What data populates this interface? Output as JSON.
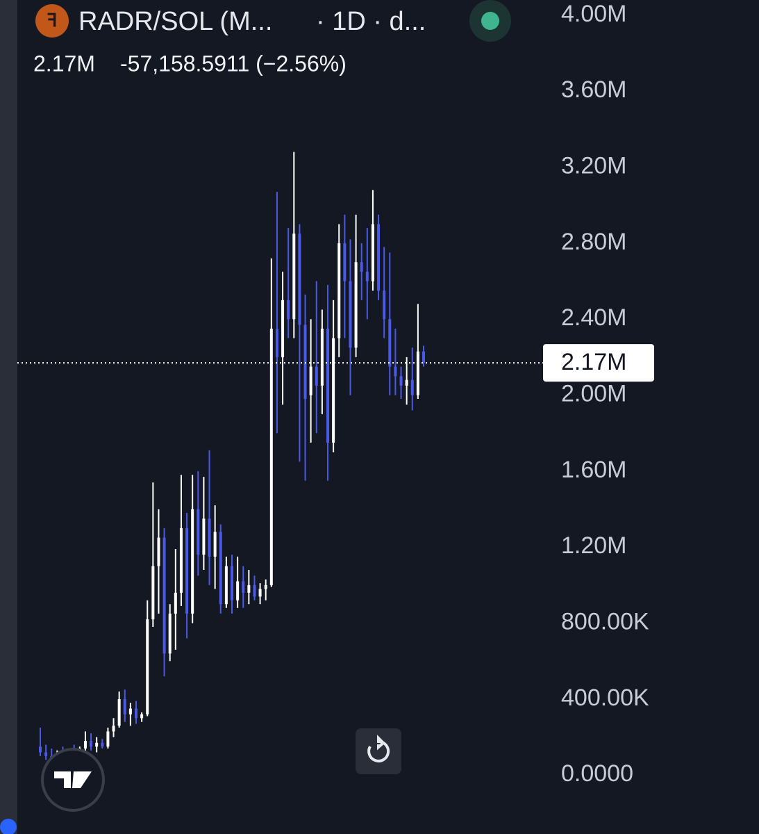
{
  "header": {
    "symbol": "RADR/SOL (M...",
    "interval": "· 1D · d...",
    "change": "-57,158.5911 (−2.56%)"
  },
  "chart_data": {
    "type": "candlestick",
    "open": [
      150000,
      120000,
      100000,
      90000,
      110000,
      100000,
      130000,
      110000,
      140000,
      180000,
      150000,
      170000,
      150000,
      230000,
      260000,
      400000,
      320000,
      350000,
      300000,
      320000,
      820000,
      1100000,
      1250000,
      640000,
      850000,
      960000,
      1300000,
      850000,
      1400000,
      1160000,
      1350000,
      1150000,
      1280000,
      900000,
      1100000,
      920000,
      1020000,
      960000,
      1000000,
      940000,
      980000,
      1000000,
      2350000,
      2200000,
      2500000,
      2400000,
      2850000,
      2370000,
      2000000,
      2150000,
      2050000,
      2350000,
      1750000,
      2300000,
      2800000,
      2600000,
      2250000,
      2700000,
      2650000,
      2600000,
      2900000,
      2550000,
      2400000,
      2150000,
      2100000,
      2050000,
      2080000,
      2000000,
      2230000
    ],
    "high": [
      250000,
      160000,
      140000,
      130000,
      150000,
      140000,
      160000,
      150000,
      230000,
      220000,
      200000,
      190000,
      250000,
      300000,
      440000,
      450000,
      380000,
      390000,
      330000,
      920000,
      1540000,
      1400000,
      1300000,
      900000,
      1190000,
      1580000,
      1380000,
      1580000,
      1600000,
      1570000,
      1710000,
      1420000,
      1320000,
      1150000,
      1160000,
      1150000,
      1100000,
      1080000,
      1050000,
      1010000,
      1030000,
      2720000,
      3070000,
      2650000,
      2880000,
      3280000,
      2900000,
      2530000,
      2400000,
      2600000,
      2450000,
      2580000,
      2500000,
      2900000,
      2950000,
      2820000,
      2950000,
      2800000,
      2880000,
      3080000,
      2950000,
      2780000,
      2750000,
      2350000,
      2150000,
      2200000,
      2250000,
      2480000,
      2260000
    ],
    "low": [
      100000,
      80000,
      70000,
      70000,
      90000,
      80000,
      100000,
      90000,
      120000,
      130000,
      120000,
      140000,
      140000,
      200000,
      250000,
      280000,
      260000,
      270000,
      280000,
      310000,
      780000,
      850000,
      520000,
      600000,
      660000,
      890000,
      720000,
      800000,
      1050000,
      1080000,
      1000000,
      980000,
      850000,
      880000,
      850000,
      880000,
      880000,
      900000,
      920000,
      900000,
      920000,
      990000,
      1800000,
      1950000,
      2300000,
      2300000,
      1650000,
      1550000,
      1750000,
      1800000,
      1900000,
      1550000,
      1700000,
      2200000,
      2300000,
      2000000,
      2200000,
      2500000,
      2400000,
      2550000,
      2500000,
      2300000,
      2000000,
      2000000,
      1980000,
      1950000,
      1920000,
      1980000,
      2150000
    ],
    "close": [
      120000,
      100000,
      90000,
      110000,
      100000,
      130000,
      110000,
      140000,
      180000,
      150000,
      170000,
      150000,
      230000,
      260000,
      400000,
      320000,
      350000,
      300000,
      320000,
      820000,
      1100000,
      1250000,
      640000,
      850000,
      960000,
      1300000,
      850000,
      1400000,
      1160000,
      1350000,
      1150000,
      1280000,
      900000,
      1100000,
      920000,
      1020000,
      960000,
      1000000,
      940000,
      980000,
      1000000,
      2350000,
      2200000,
      2500000,
      2400000,
      2850000,
      2370000,
      1980000,
      2150000,
      2050000,
      2350000,
      1750000,
      2300000,
      2800000,
      2600000,
      2250000,
      2700000,
      2650000,
      2600000,
      2900000,
      2550000,
      2400000,
      2150000,
      2100000,
      2050000,
      2080000,
      2000000,
      2230000,
      2170000
    ],
    "up_color": "#ffffff",
    "down_color": "#4a5ae6",
    "ylim": [
      -310000,
      4080000
    ],
    "yticks": [
      {
        "value": 0,
        "label": "0.0000"
      },
      {
        "value": 400000,
        "label": "400.00K"
      },
      {
        "value": 800000,
        "label": "800.00K"
      },
      {
        "value": 1200000,
        "label": "1.20M"
      },
      {
        "value": 1600000,
        "label": "1.60M"
      },
      {
        "value": 2000000,
        "label": "2.00M"
      },
      {
        "value": 2400000,
        "label": "2.40M"
      },
      {
        "value": 2800000,
        "label": "2.80M"
      },
      {
        "value": 3200000,
        "label": "3.20M"
      },
      {
        "value": 3600000,
        "label": "3.60M"
      },
      {
        "value": 4000000,
        "label": "4.00M"
      }
    ],
    "last_price": {
      "value": 2170000,
      "label": "2.17M"
    }
  }
}
